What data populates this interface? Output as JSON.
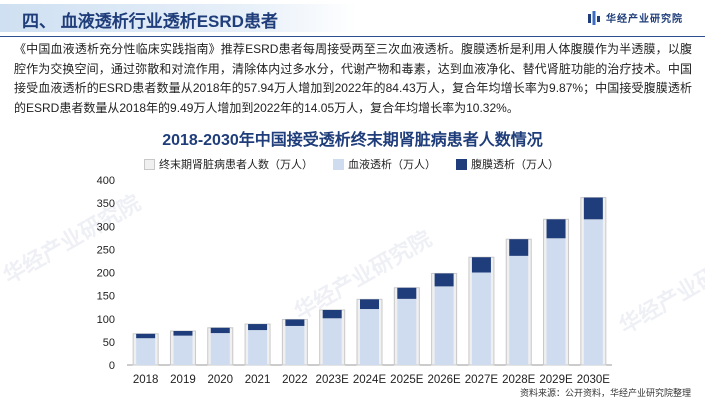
{
  "header": {
    "section_title": "四、 血液透析行业透析ESRD患者",
    "logo_text": "华经产业研究院"
  },
  "paragraph": "《中国血液透析充分性临床实践指南》推荐ESRD患者每周接受两至三次血液透析。腹膜透析是利用人体腹膜作为半透膜，以腹腔作为交换空间，通过弥散和对流作用，清除体内过多水分，代谢产物和毒素，达到血液净化、替代肾脏功能的治疗技术。中国接受血液透析的ESRD患者数量从2018年的57.94万人增加到2022年的84.43万人，复合年均增长率为9.87%；中国接受腹膜透析的ESRD患者数量从2018年的9.49万人增加到2022年的14.05万人，复合年均增长率为10.32%。",
  "source": "资料来源：公开资料，华经产业研究院整理",
  "watermark": "华经产业研究院",
  "colors": {
    "total": "#f0f0f0",
    "hemo": "#cfdcef",
    "pd": "#1f3d7a",
    "title": "#1f3d7a"
  },
  "chart_data": {
    "type": "bar",
    "title": "2018-2030年中国接受透析终末期肾脏病患者人数情况",
    "categories": [
      "2018",
      "2019",
      "2020",
      "2021",
      "2022",
      "2023E",
      "2024E",
      "2025E",
      "2026E",
      "2027E",
      "2028E",
      "2029E",
      "2030E"
    ],
    "series": [
      {
        "name": "终末期肾脏病患者人数（万人）",
        "values": [
          67.43,
          73.5,
          80.5,
          88.5,
          98.48,
          119,
          142,
          167,
          198,
          233,
          272,
          315,
          362
        ]
      },
      {
        "name": "血液透析（万人）",
        "values": [
          57.94,
          63.5,
          69.0,
          75.5,
          84.43,
          101,
          121,
          143,
          170,
          200,
          236,
          274,
          315
        ]
      },
      {
        "name": "腹膜透析（万人）",
        "values": [
          9.49,
          10.0,
          11.5,
          13.0,
          14.05,
          18,
          21,
          24,
          28,
          33,
          36,
          41,
          47
        ]
      }
    ],
    "ylim": [
      0,
      400
    ],
    "yticks": [
      0,
      50,
      100,
      150,
      200,
      250,
      300,
      350,
      400
    ],
    "legend_position": "top",
    "grid": false
  }
}
